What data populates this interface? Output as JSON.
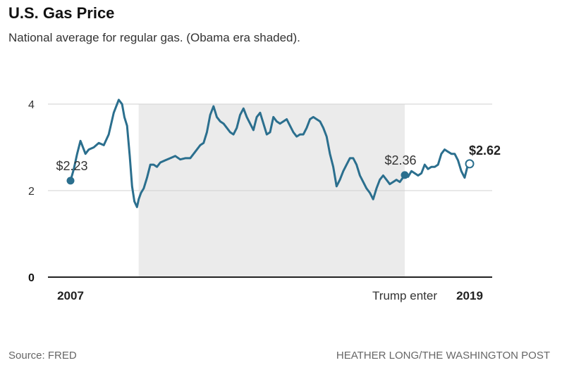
{
  "title": "U.S. Gas Price",
  "subtitle": "National average for regular gas. (Obama era shaded).",
  "source": "Source: FRED",
  "credit": "HEATHER LONG/THE WASHINGTON POST",
  "colors": {
    "line": "#2b6f8e",
    "shade": "#ebebeb",
    "grid": "#d0d0d0",
    "axis": "#222222"
  },
  "chart_data": {
    "type": "line",
    "xlim": [
      2007.0,
      2019.0
    ],
    "ylim": [
      0,
      4.2
    ],
    "y_ticks": [
      0,
      2,
      4
    ],
    "y_tick_labels": [
      "0",
      "2",
      "4"
    ],
    "x_tick_labels": [
      {
        "x": 2007.0,
        "label": "2007",
        "bold": true
      },
      {
        "x": 2017.05,
        "label": "Trump enter",
        "bold": false
      },
      {
        "x": 2019.0,
        "label": "2019",
        "bold": true
      }
    ],
    "grid": true,
    "shaded_period": {
      "start": 2009.05,
      "end": 2017.05
    },
    "series": [
      {
        "x": [
          2007.0,
          2007.1,
          2007.2,
          2007.3,
          2007.35,
          2007.45,
          2007.55,
          2007.7,
          2007.85,
          2008.0,
          2008.15,
          2008.3,
          2008.45,
          2008.55,
          2008.62,
          2008.7,
          2008.78,
          2008.85,
          2008.92,
          2009.0,
          2009.05,
          2009.12,
          2009.2,
          2009.3,
          2009.4,
          2009.5,
          2009.6,
          2009.7,
          2009.85,
          2010.0,
          2010.15,
          2010.3,
          2010.45,
          2010.6,
          2010.75,
          2010.9,
          2011.0,
          2011.1,
          2011.2,
          2011.3,
          2011.4,
          2011.5,
          2011.6,
          2011.7,
          2011.8,
          2011.9,
          2012.0,
          2012.1,
          2012.2,
          2012.3,
          2012.4,
          2012.5,
          2012.6,
          2012.7,
          2012.8,
          2012.9,
          2013.0,
          2013.1,
          2013.2,
          2013.3,
          2013.4,
          2013.5,
          2013.6,
          2013.7,
          2013.8,
          2013.9,
          2014.0,
          2014.1,
          2014.2,
          2014.3,
          2014.4,
          2014.5,
          2014.6,
          2014.7,
          2014.8,
          2014.9,
          2015.0,
          2015.1,
          2015.2,
          2015.3,
          2015.4,
          2015.5,
          2015.6,
          2015.7,
          2015.8,
          2015.9,
          2016.0,
          2016.1,
          2016.2,
          2016.3,
          2016.4,
          2016.5,
          2016.6,
          2016.7,
          2016.8,
          2016.9,
          2017.05
        ],
        "y": [
          2.23,
          2.5,
          2.85,
          3.15,
          3.05,
          2.85,
          2.95,
          3.0,
          3.1,
          3.05,
          3.3,
          3.8,
          4.1,
          4.0,
          3.7,
          3.5,
          2.8,
          2.1,
          1.75,
          1.62,
          1.8,
          1.95,
          2.05,
          2.3,
          2.6,
          2.6,
          2.55,
          2.65,
          2.7,
          2.75,
          2.8,
          2.72,
          2.75,
          2.75,
          2.9,
          3.05,
          3.1,
          3.35,
          3.75,
          3.95,
          3.7,
          3.6,
          3.55,
          3.45,
          3.35,
          3.3,
          3.45,
          3.75,
          3.9,
          3.7,
          3.55,
          3.4,
          3.7,
          3.8,
          3.55,
          3.3,
          3.35,
          3.7,
          3.6,
          3.55,
          3.6,
          3.65,
          3.5,
          3.35,
          3.25,
          3.3,
          3.3,
          3.45,
          3.65,
          3.7,
          3.65,
          3.6,
          3.45,
          3.25,
          2.85,
          2.55,
          2.1,
          2.25,
          2.45,
          2.6,
          2.75,
          2.75,
          2.6,
          2.35,
          2.2,
          2.05,
          1.95,
          1.8,
          2.05,
          2.25,
          2.35,
          2.25,
          2.15,
          2.2,
          2.25,
          2.2,
          2.36
        ]
      },
      {
        "x": [
          2017.05,
          2017.15,
          2017.25,
          2017.35,
          2017.45,
          2017.55,
          2017.65,
          2017.75,
          2017.85,
          2017.95,
          2018.05,
          2018.15,
          2018.25,
          2018.35,
          2018.45,
          2018.55,
          2018.65,
          2018.75,
          2018.85,
          2018.95,
          2019.0
        ],
        "y": [
          2.36,
          2.32,
          2.45,
          2.4,
          2.35,
          2.4,
          2.6,
          2.5,
          2.55,
          2.55,
          2.6,
          2.85,
          2.95,
          2.9,
          2.85,
          2.85,
          2.7,
          2.45,
          2.3,
          2.6,
          2.62
        ]
      }
    ],
    "annotations": [
      {
        "x": 2007.0,
        "y": 2.23,
        "label": "$2.23",
        "marker": "filled",
        "bold": false
      },
      {
        "x": 2017.05,
        "y": 2.36,
        "label": "$2.36",
        "marker": "filled",
        "bold": false
      },
      {
        "x": 2019.0,
        "y": 2.62,
        "label": "$2.62",
        "marker": "hollow",
        "bold": true
      }
    ]
  }
}
